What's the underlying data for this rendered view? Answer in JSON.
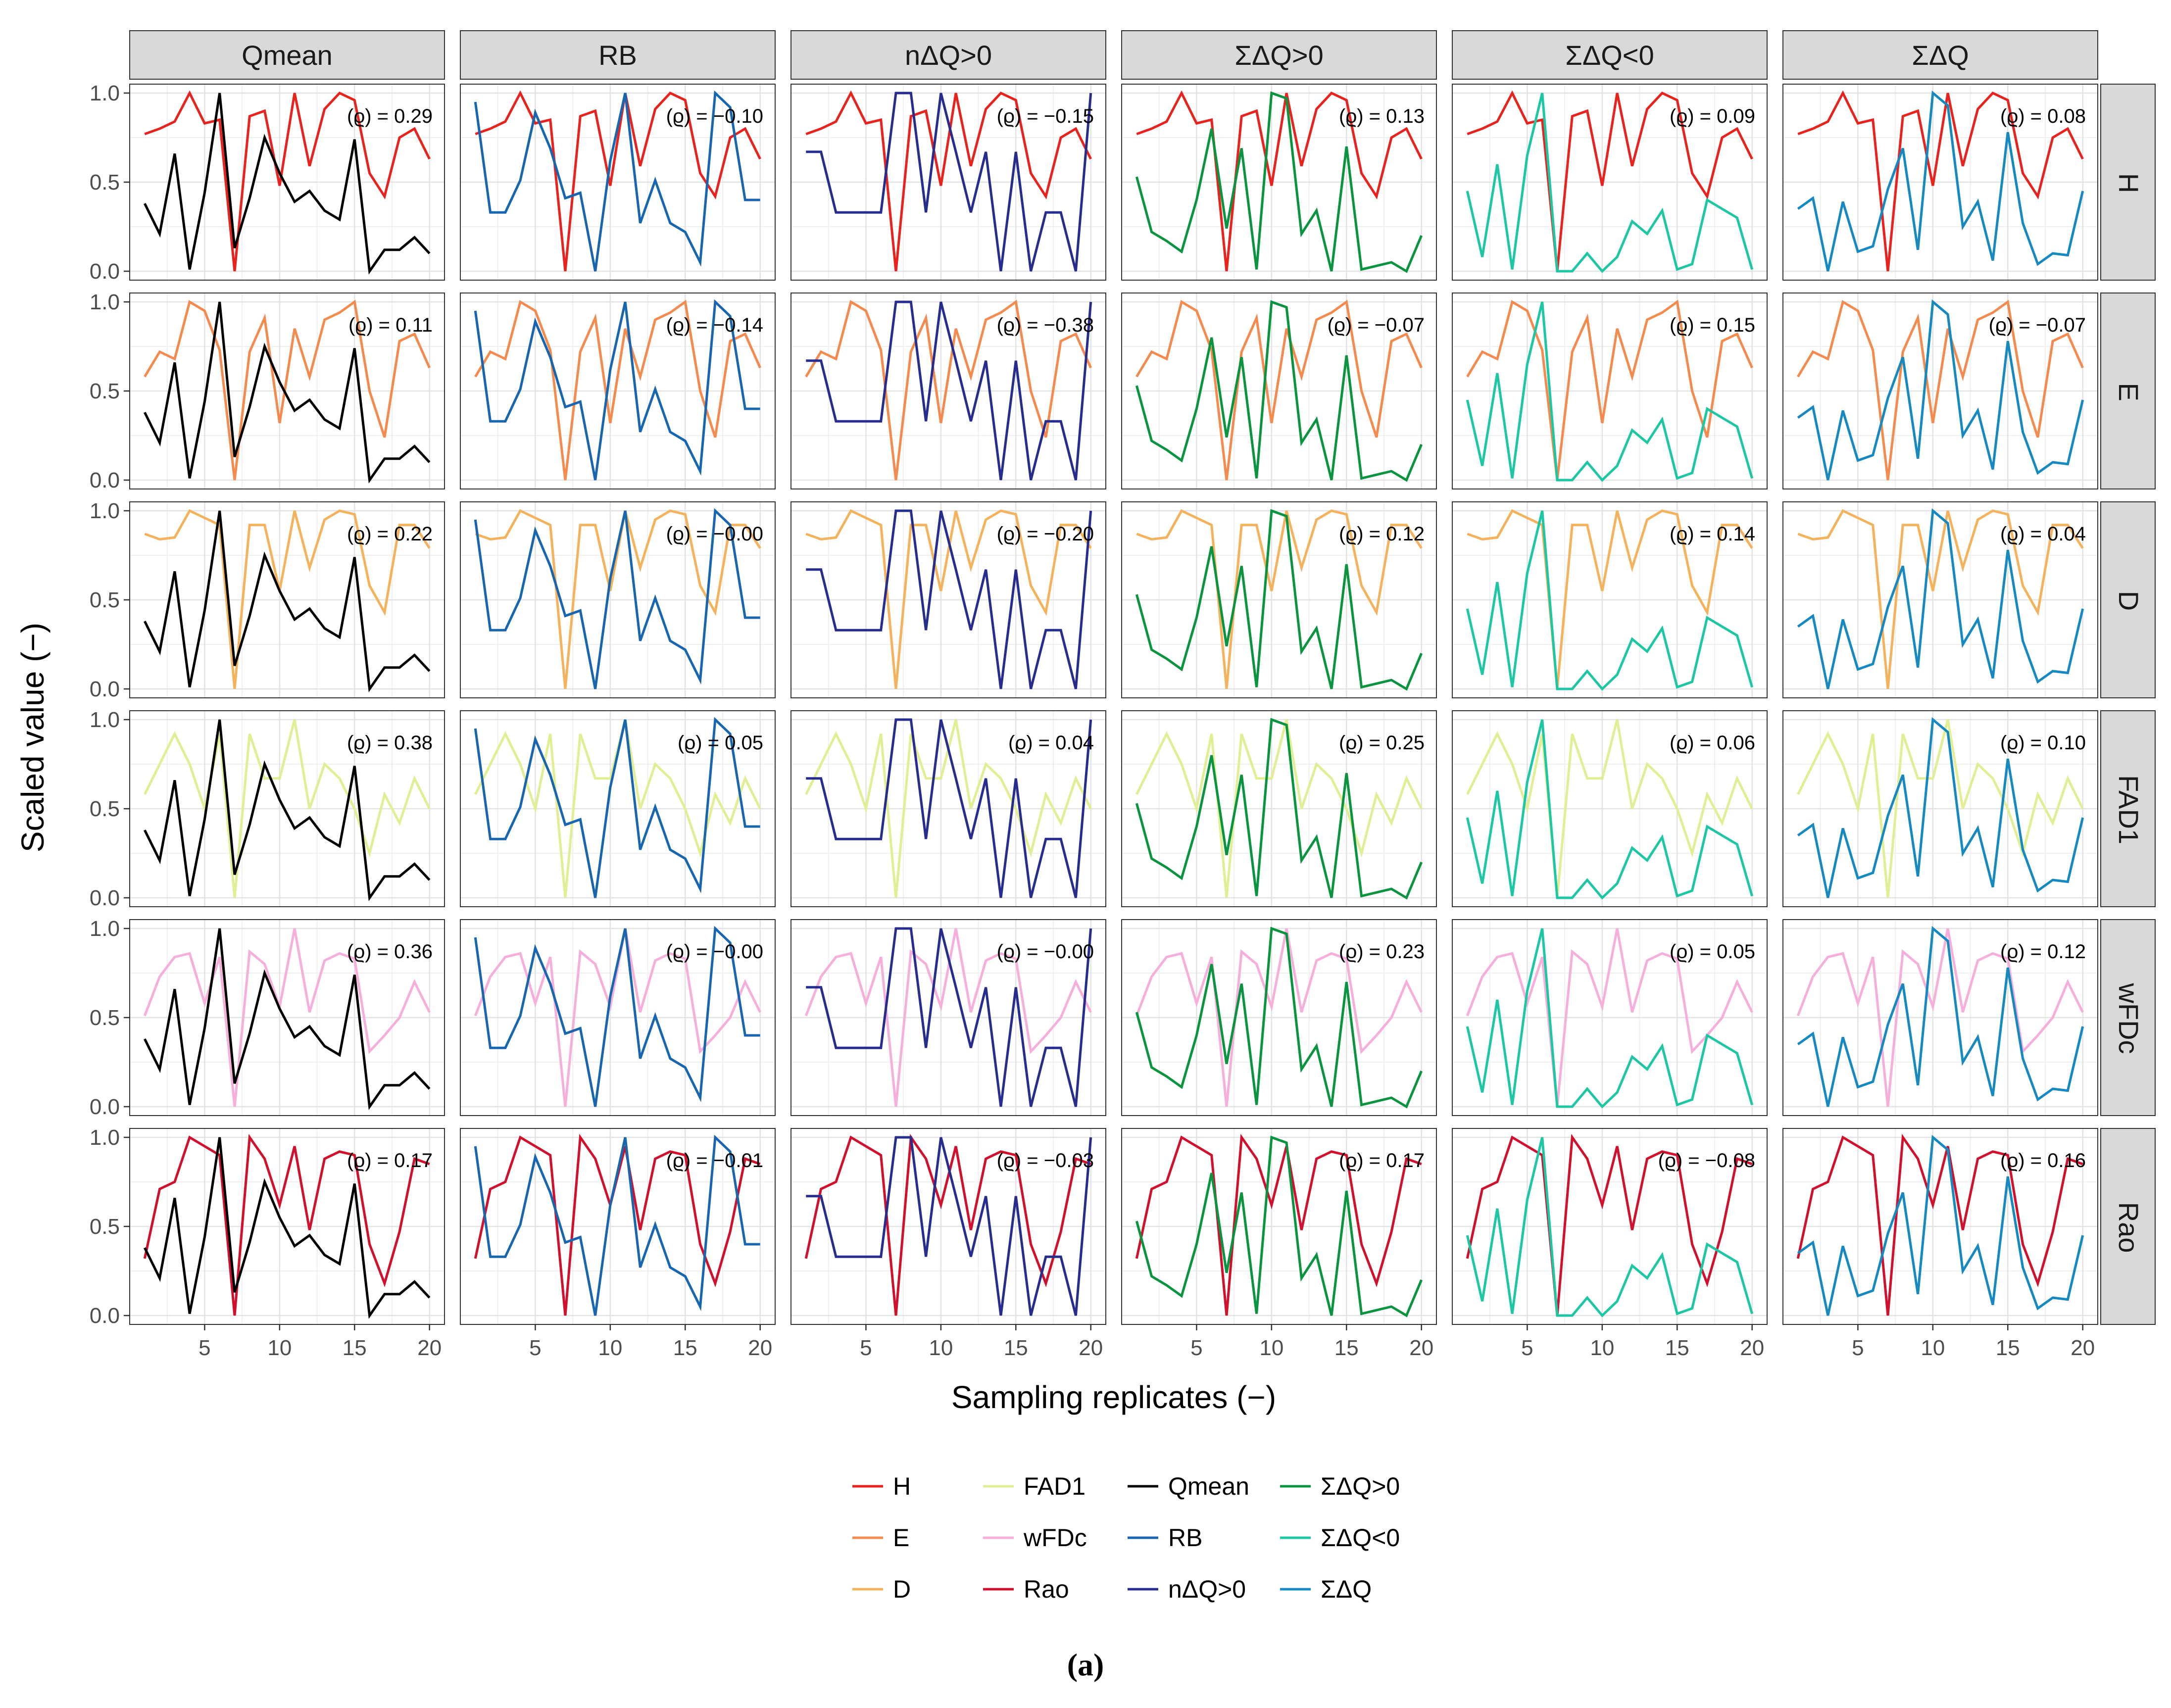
{
  "figure": {
    "caption": "(a)"
  },
  "axes": {
    "xlabel": "Sampling replicates (−)",
    "ylabel": "Scaled value (−)",
    "xticks": [
      5,
      10,
      15,
      20
    ],
    "yticks": [
      "0.0",
      "0.5",
      "1.0"
    ],
    "xlim": [
      0,
      21
    ],
    "ylim": [
      -0.05,
      1.05
    ]
  },
  "columns": [
    "Qmean",
    "RB",
    "nΔQ>0",
    "ΣΔQ>0",
    "ΣΔQ<0",
    "ΣΔQ"
  ],
  "rows": [
    "H",
    "E",
    "D",
    "FAD1",
    "wFDc",
    "Rao"
  ],
  "legend": {
    "position": "bottom",
    "entries": [
      {
        "label": "H",
        "color": "#E8231E"
      },
      {
        "label": "E",
        "color": "#F58A4F"
      },
      {
        "label": "D",
        "color": "#F5B25C"
      },
      {
        "label": "FAD1",
        "color": "#E2EE93"
      },
      {
        "label": "wFDc",
        "color": "#F6AEDB"
      },
      {
        "label": "Rao",
        "color": "#D0102C"
      },
      {
        "label": "Qmean",
        "color": "#000000"
      },
      {
        "label": "RB",
        "color": "#1866B0"
      },
      {
        "label": "nΔQ>0",
        "color": "#272D8F"
      },
      {
        "label": "ΣΔQ>0",
        "color": "#0B9440"
      },
      {
        "label": "ΣΔQ<0",
        "color": "#1DC7A3"
      },
      {
        "label": "ΣΔQ",
        "color": "#1589C0"
      }
    ]
  },
  "chart_data": {
    "type": "line",
    "layout": "facet-grid",
    "grid": true,
    "x": [
      1,
      2,
      3,
      4,
      5,
      6,
      7,
      8,
      9,
      10,
      11,
      12,
      13,
      14,
      15,
      16,
      17,
      18,
      19,
      20
    ],
    "row_series": {
      "H": {
        "color": "#E8231E",
        "values": [
          0.77,
          0.8,
          0.84,
          1.0,
          0.83,
          0.85,
          0.0,
          0.87,
          0.9,
          0.48,
          1.0,
          0.59,
          0.91,
          1.0,
          0.96,
          0.55,
          0.42,
          0.75,
          0.8,
          0.63
        ]
      },
      "E": {
        "color": "#F58A4F",
        "values": [
          0.58,
          0.72,
          0.68,
          1.0,
          0.95,
          0.73,
          0.0,
          0.72,
          0.91,
          0.32,
          0.85,
          0.58,
          0.9,
          0.94,
          1.0,
          0.5,
          0.24,
          0.78,
          0.82,
          0.63
        ]
      },
      "D": {
        "color": "#F5B25C",
        "values": [
          0.87,
          0.84,
          0.85,
          1.0,
          0.96,
          0.92,
          0.0,
          0.92,
          0.92,
          0.55,
          1.0,
          0.68,
          0.95,
          1.0,
          0.98,
          0.58,
          0.43,
          0.92,
          0.92,
          0.79
        ]
      },
      "FAD1": {
        "color": "#E2EE93",
        "values": [
          0.58,
          0.75,
          0.92,
          0.75,
          0.5,
          0.92,
          0.0,
          0.92,
          0.67,
          0.67,
          1.0,
          0.5,
          0.75,
          0.67,
          0.5,
          0.25,
          0.58,
          0.42,
          0.67,
          0.5
        ]
      },
      "wFDc": {
        "color": "#F6AEDB",
        "values": [
          0.51,
          0.73,
          0.84,
          0.86,
          0.58,
          0.84,
          0.0,
          0.87,
          0.8,
          0.56,
          1.0,
          0.53,
          0.82,
          0.86,
          0.83,
          0.31,
          0.4,
          0.5,
          0.7,
          0.53
        ]
      },
      "Rao": {
        "color": "#D0102C",
        "values": [
          0.32,
          0.71,
          0.75,
          1.0,
          0.95,
          0.9,
          0.0,
          1.0,
          0.88,
          0.62,
          0.95,
          0.48,
          0.88,
          0.92,
          0.9,
          0.4,
          0.18,
          0.47,
          0.88,
          0.85
        ]
      }
    },
    "column_series": {
      "Qmean": {
        "color": "#000000",
        "values": [
          0.38,
          0.21,
          0.66,
          0.01,
          0.44,
          1.0,
          0.13,
          0.41,
          0.75,
          0.55,
          0.39,
          0.45,
          0.34,
          0.29,
          0.74,
          0.0,
          0.12,
          0.12,
          0.19,
          0.1
        ]
      },
      "RB": {
        "color": "#1866B0",
        "values": [
          0.95,
          0.33,
          0.33,
          0.51,
          0.89,
          0.69,
          0.41,
          0.44,
          0.0,
          0.62,
          1.0,
          0.27,
          0.51,
          0.27,
          0.22,
          0.05,
          1.0,
          0.92,
          0.4,
          0.4
        ]
      },
      "nΔQ>0": {
        "color": "#272D8F",
        "values": [
          0.67,
          0.67,
          0.33,
          0.33,
          0.33,
          0.33,
          1.0,
          1.0,
          0.33,
          1.0,
          0.67,
          0.33,
          0.67,
          0.0,
          0.67,
          0.0,
          0.33,
          0.33,
          0.0,
          1.0
        ]
      },
      "ΣΔQ>0": {
        "color": "#0B9440",
        "values": [
          0.53,
          0.22,
          0.17,
          0.11,
          0.4,
          0.8,
          0.24,
          0.69,
          0.01,
          1.0,
          0.97,
          0.21,
          0.34,
          0.0,
          0.7,
          0.01,
          0.03,
          0.05,
          0.0,
          0.2
        ]
      },
      "ΣΔQ<0": {
        "color": "#1DC7A3",
        "values": [
          0.45,
          0.08,
          0.6,
          0.01,
          0.65,
          1.0,
          0.0,
          0.0,
          0.1,
          0.0,
          0.08,
          0.28,
          0.21,
          0.34,
          0.01,
          0.04,
          0.4,
          0.35,
          0.3,
          0.01
        ]
      },
      "ΣΔQ": {
        "color": "#1589C0",
        "values": [
          0.35,
          0.41,
          0.0,
          0.39,
          0.11,
          0.14,
          0.46,
          0.69,
          0.12,
          1.0,
          0.93,
          0.25,
          0.39,
          0.06,
          0.78,
          0.27,
          0.04,
          0.1,
          0.09,
          0.45
        ]
      }
    },
    "correlations": {
      "H": [
        "(ϱ) = 0.29",
        "(ϱ) = −0.10",
        "(ϱ) = −0.15",
        "(ϱ) = 0.13",
        "(ϱ) = 0.09",
        "(ϱ) = 0.08"
      ],
      "E": [
        "(ϱ) = 0.11",
        "(ϱ) = −0.14",
        "(ϱ) = −0.38",
        "(ϱ) = −0.07",
        "(ϱ) = 0.15",
        "(ϱ) = −0.07"
      ],
      "D": [
        "(ϱ) = 0.22",
        "(ϱ) = −0.00",
        "(ϱ) = −0.20",
        "(ϱ) = 0.12",
        "(ϱ) = 0.14",
        "(ϱ) = 0.04"
      ],
      "FAD1": [
        "(ϱ) = 0.38",
        "(ϱ) = 0.05",
        "(ϱ) = 0.04",
        "(ϱ) = 0.25",
        "(ϱ) = 0.06",
        "(ϱ) = 0.10"
      ],
      "wFDc": [
        "(ϱ) = 0.36",
        "(ϱ) = −0.00",
        "(ϱ) = −0.00",
        "(ϱ) = 0.23",
        "(ϱ) = 0.05",
        "(ϱ) = 0.12"
      ],
      "Rao": [
        "(ϱ) = 0.17",
        "(ϱ) = −0.01",
        "(ϱ) = −0.03",
        "(ϱ) = 0.17",
        "(ϱ) = −0.08",
        "(ϱ) = 0.16"
      ]
    }
  }
}
